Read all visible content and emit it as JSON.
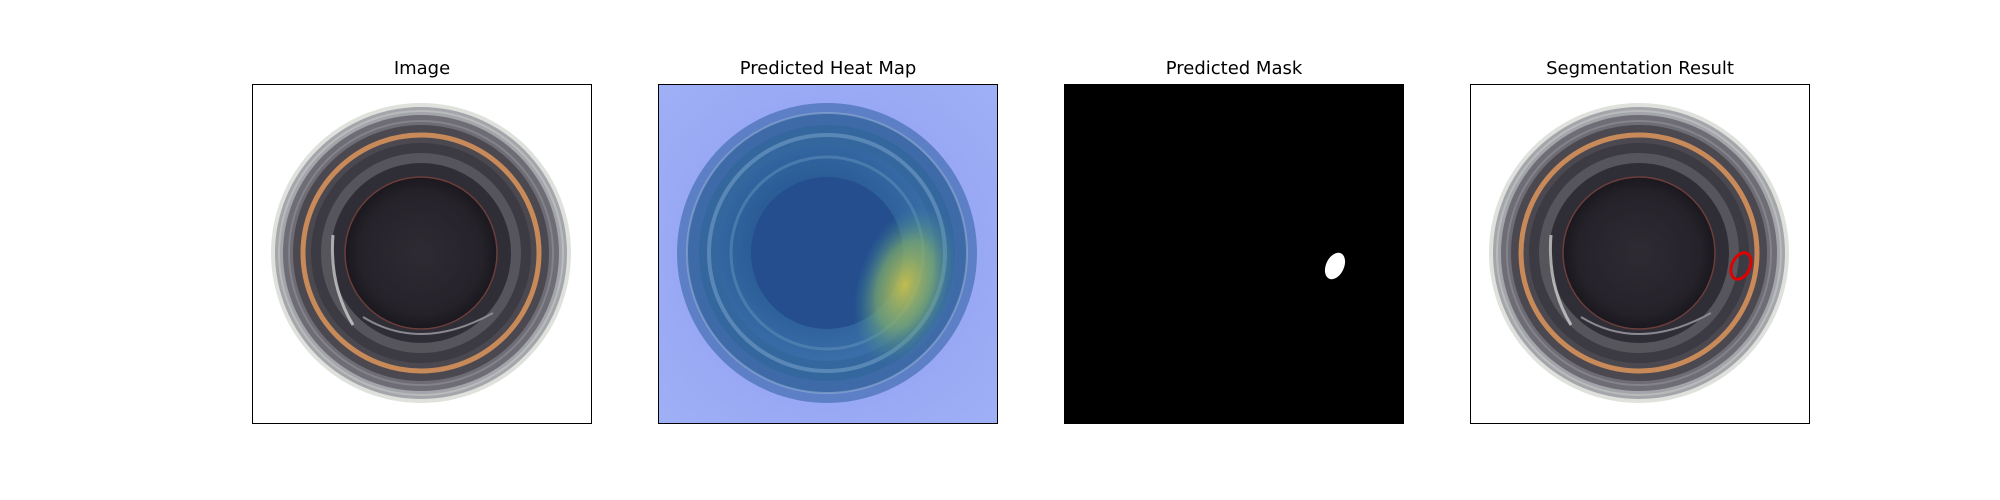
{
  "figure": {
    "panels": [
      {
        "title": "Image"
      },
      {
        "title": "Predicted Heat Map"
      },
      {
        "title": "Predicted Mask"
      },
      {
        "title": "Segmentation Result"
      }
    ]
  },
  "colors": {
    "frame_border": "#000000",
    "mask_background": "#000000",
    "mask_foreground": "#ffffff",
    "segmentation_outline": "#e00000",
    "heatmap_low": "#9aa2f2",
    "heatmap_mid": "#3a78b0",
    "heatmap_high": "#b8c040"
  }
}
